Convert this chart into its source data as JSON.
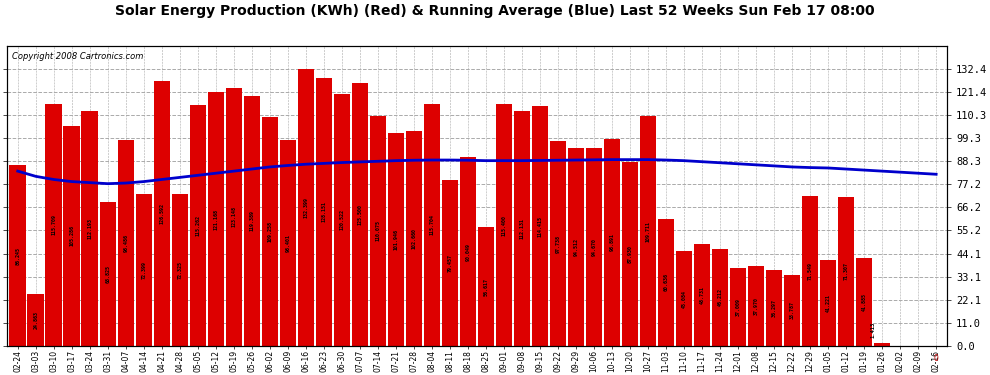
{
  "title": "Solar Energy Production (KWh) (Red) & Running Average (Blue) Last 52 Weeks Sun Feb 17 08:00",
  "copyright": "Copyright 2008 Cartronics.com",
  "bar_color": "#DD0000",
  "line_color": "#0000CC",
  "bg_color": "#FFFFFF",
  "grid_color": "#AAAAAA",
  "ylim_max": 143.4,
  "ytick_values": [
    0.0,
    11.0,
    22.1,
    33.1,
    44.1,
    55.2,
    66.2,
    77.2,
    88.3,
    99.3,
    110.3,
    121.4,
    132.4
  ],
  "categories": [
    "02-24",
    "03-03",
    "03-10",
    "03-17",
    "03-24",
    "03-31",
    "04-07",
    "04-14",
    "04-21",
    "04-28",
    "05-05",
    "05-12",
    "05-19",
    "05-26",
    "06-02",
    "06-09",
    "06-16",
    "06-23",
    "06-30",
    "07-07",
    "07-14",
    "07-21",
    "07-28",
    "08-04",
    "08-11",
    "08-18",
    "08-25",
    "09-01",
    "09-08",
    "09-15",
    "09-22",
    "09-29",
    "10-06",
    "10-13",
    "10-20",
    "10-27",
    "11-03",
    "11-10",
    "11-17",
    "11-24",
    "12-01",
    "12-08",
    "12-15",
    "12-22",
    "12-29",
    "01-05",
    "01-12",
    "01-19",
    "01-26",
    "02-02",
    "02-09",
    "02-16"
  ],
  "bar_values": [
    86.245,
    24.863,
    115.709,
    105.286,
    112.193,
    68.825,
    98.486,
    72.399,
    126.592,
    72.325,
    115.262,
    121.168,
    123.148,
    119.389,
    109.258,
    98.401,
    132.399,
    128.151,
    120.522,
    125.5,
    110.075,
    101.946,
    102.66,
    115.704,
    79.457,
    90.049,
    56.617,
    115.4,
    112.131,
    114.415,
    97.738,
    94.512,
    94.67,
    98.891,
    87.93,
    109.711,
    60.636,
    45.084,
    48.731,
    46.212,
    37.009,
    37.97,
    36.297,
    33.787,
    71.549,
    41.221,
    71.307,
    41.885,
    1.413,
    0.0,
    0.0,
    0.0
  ],
  "running_avg": [
    83.5,
    81.0,
    79.5,
    78.5,
    78.0,
    77.5,
    77.8,
    78.5,
    79.5,
    80.5,
    81.5,
    82.5,
    83.5,
    84.5,
    85.5,
    86.2,
    86.8,
    87.2,
    87.6,
    87.9,
    88.2,
    88.5,
    88.7,
    88.8,
    88.8,
    88.7,
    88.5,
    88.5,
    88.5,
    88.6,
    88.7,
    88.8,
    88.9,
    89.0,
    89.0,
    89.0,
    88.8,
    88.5,
    88.0,
    87.5,
    87.0,
    86.5,
    86.0,
    85.5,
    85.2,
    85.0,
    84.5,
    84.0,
    83.5,
    83.0,
    82.5,
    82.0
  ]
}
